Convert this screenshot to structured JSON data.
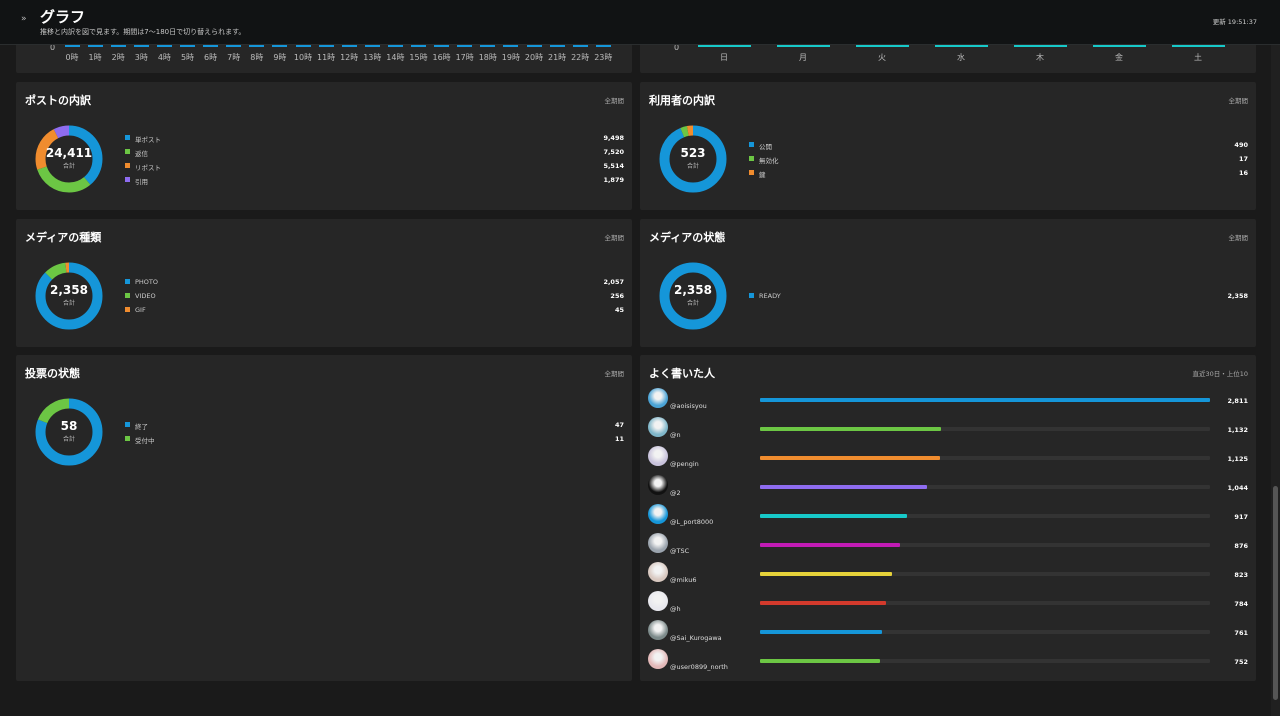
{
  "header": {
    "toggle": "»",
    "title": "グラフ",
    "subtitle": "推移と内訳を図で見ます。期間は7〜180日で切り替えられます。",
    "updated": "更新 19:51:37"
  },
  "hourly": {
    "zero_label": "0",
    "labels": [
      "0時",
      "1時",
      "2時",
      "3時",
      "4時",
      "5時",
      "6時",
      "7時",
      "8時",
      "9時",
      "10時",
      "11時",
      "12時",
      "13時",
      "14時",
      "15時",
      "16時",
      "17時",
      "18時",
      "19時",
      "20時",
      "21時",
      "22時",
      "23時"
    ],
    "bar_color": "#1596d9"
  },
  "weekday": {
    "zero_label": "0",
    "labels": [
      "日",
      "月",
      "火",
      "水",
      "木",
      "金",
      "土"
    ],
    "bar_color": "#17c9c9"
  },
  "panels": {
    "posts": {
      "title": "ポストの内訳",
      "range": "全期間",
      "total": "24,411",
      "total_label": "合計",
      "items": [
        {
          "label": "単ポスト",
          "value": "9,498",
          "color": "#1596d9"
        },
        {
          "label": "返信",
          "value": "7,520",
          "color": "#6cc644"
        },
        {
          "label": "リポスト",
          "value": "5,514",
          "color": "#f08c2e"
        },
        {
          "label": "引用",
          "value": "1,879",
          "color": "#8e6cf0"
        }
      ]
    },
    "users": {
      "title": "利用者の内訳",
      "range": "全期間",
      "total": "523",
      "total_label": "合計",
      "items": [
        {
          "label": "公開",
          "value": "490",
          "color": "#1596d9"
        },
        {
          "label": "無効化",
          "value": "17",
          "color": "#6cc644"
        },
        {
          "label": "鍵",
          "value": "16",
          "color": "#f08c2e"
        }
      ]
    },
    "media_types": {
      "title": "メディアの種類",
      "range": "全期間",
      "total": "2,358",
      "total_label": "合計",
      "items": [
        {
          "label": "PHOTO",
          "value": "2,057",
          "color": "#1596d9"
        },
        {
          "label": "VIDEO",
          "value": "256",
          "color": "#6cc644"
        },
        {
          "label": "GIF",
          "value": "45",
          "color": "#f08c2e"
        }
      ]
    },
    "media_status": {
      "title": "メディアの状態",
      "range": "全期間",
      "total": "2,358",
      "total_label": "合計",
      "items": [
        {
          "label": "READY",
          "value": "2,358",
          "color": "#1596d9"
        }
      ]
    },
    "polls": {
      "title": "投票の状態",
      "range": "全期間",
      "total": "58",
      "total_label": "合計",
      "items": [
        {
          "label": "終了",
          "value": "47",
          "color": "#1596d9"
        },
        {
          "label": "受付中",
          "value": "11",
          "color": "#6cc644"
        }
      ]
    },
    "top_writers": {
      "title": "よく書いた人",
      "range": "直近30日・上位10",
      "max": 2811,
      "users": [
        {
          "handle": "@aoisisyou",
          "value": "2,811",
          "count": 2811,
          "color": "#1596d9",
          "avatar_color": "#4aa3d6"
        },
        {
          "handle": "@n",
          "value": "1,132",
          "count": 1132,
          "color": "#6cc644",
          "avatar_color": "#7fb6c9"
        },
        {
          "handle": "@pengin",
          "value": "1,125",
          "count": 1125,
          "color": "#f08c2e",
          "avatar_color": "#c9c3dc"
        },
        {
          "handle": "@2",
          "value": "1,044",
          "count": 1044,
          "color": "#8e6cf0",
          "avatar_color": "#111111"
        },
        {
          "handle": "@L_port8000",
          "value": "917",
          "count": 917,
          "color": "#17c9c9",
          "avatar_color": "#1596d9"
        },
        {
          "handle": "@TSC",
          "value": "876",
          "count": 876,
          "color": "#c21bb5",
          "avatar_color": "#9aa3ad"
        },
        {
          "handle": "@miku6",
          "value": "823",
          "count": 823,
          "color": "#e6d23a",
          "avatar_color": "#d8c8c0"
        },
        {
          "handle": "@h",
          "value": "784",
          "count": 784,
          "color": "#d33a2c",
          "avatar_color": "#e8e8ee"
        },
        {
          "handle": "@Sai_Kurogawa",
          "value": "761",
          "count": 761,
          "color": "#1596d9",
          "avatar_color": "#7c8a8a"
        },
        {
          "handle": "@user0899_north",
          "value": "752",
          "count": 752,
          "color": "#6cc644",
          "avatar_color": "#e3b8b8"
        }
      ]
    }
  }
}
